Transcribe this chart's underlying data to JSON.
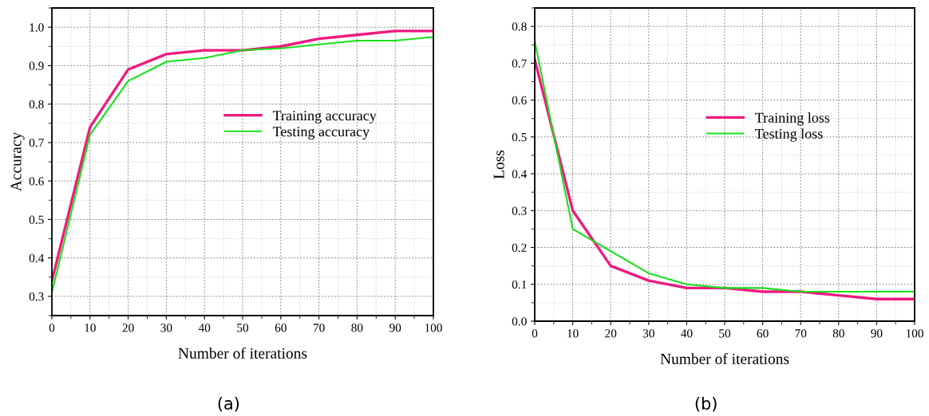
{
  "chart_data": [
    {
      "type": "line",
      "xlabel": "Number of iterations",
      "ylabel": "Accuracy",
      "x": [
        0,
        10,
        20,
        30,
        40,
        50,
        60,
        70,
        80,
        90,
        100
      ],
      "xlim": [
        0,
        100
      ],
      "xticks": [
        0,
        10,
        20,
        30,
        40,
        50,
        60,
        70,
        80,
        90,
        100
      ],
      "ylim": [
        0.25,
        1.05
      ],
      "yticks": [
        0.3,
        0.4,
        0.5,
        0.6,
        0.7,
        0.8,
        0.9,
        {
          "value": 1,
          "label": "1.0"
        }
      ],
      "grid": true,
      "legend": "center right",
      "annotations": [
        "(a)"
      ],
      "series": [
        {
          "name": "Training accuracy",
          "color": "#f0197f",
          "values": [
            0.34,
            0.74,
            0.89,
            0.93,
            0.94,
            0.94,
            0.95,
            0.97,
            0.98,
            0.99,
            0.99
          ]
        },
        {
          "name": "Testing accuracy",
          "color": "#19e019",
          "values": [
            0.31,
            0.72,
            0.86,
            0.91,
            0.92,
            0.94,
            0.945,
            0.955,
            0.965,
            0.965,
            0.975
          ]
        }
      ]
    },
    {
      "type": "line",
      "xlabel": "Number of iterations",
      "ylabel": "Loss",
      "x": [
        0,
        10,
        20,
        30,
        40,
        50,
        60,
        70,
        80,
        90,
        100
      ],
      "xlim": [
        0,
        100
      ],
      "xticks": [
        0,
        10,
        20,
        30,
        40,
        50,
        60,
        70,
        80,
        90,
        100
      ],
      "ylim": [
        0,
        0.85
      ],
      "yticks": [
        {
          "value": 0,
          "label": "0.0"
        },
        0.1,
        0.2,
        0.3,
        0.4,
        0.5,
        0.6,
        0.7,
        0.8
      ],
      "grid": true,
      "legend": "center right",
      "annotations": [
        "(b)"
      ],
      "series": [
        {
          "name": "Training loss",
          "color": "#f0197f",
          "values": [
            0.71,
            0.3,
            0.15,
            0.11,
            0.09,
            0.09,
            0.08,
            0.08,
            0.07,
            0.06,
            0.06
          ]
        },
        {
          "name": "Testing loss",
          "color": "#19e019",
          "values": [
            0.76,
            0.25,
            0.19,
            0.13,
            0.1,
            0.09,
            0.09,
            0.08,
            0.08,
            0.08,
            0.08
          ]
        }
      ]
    }
  ]
}
